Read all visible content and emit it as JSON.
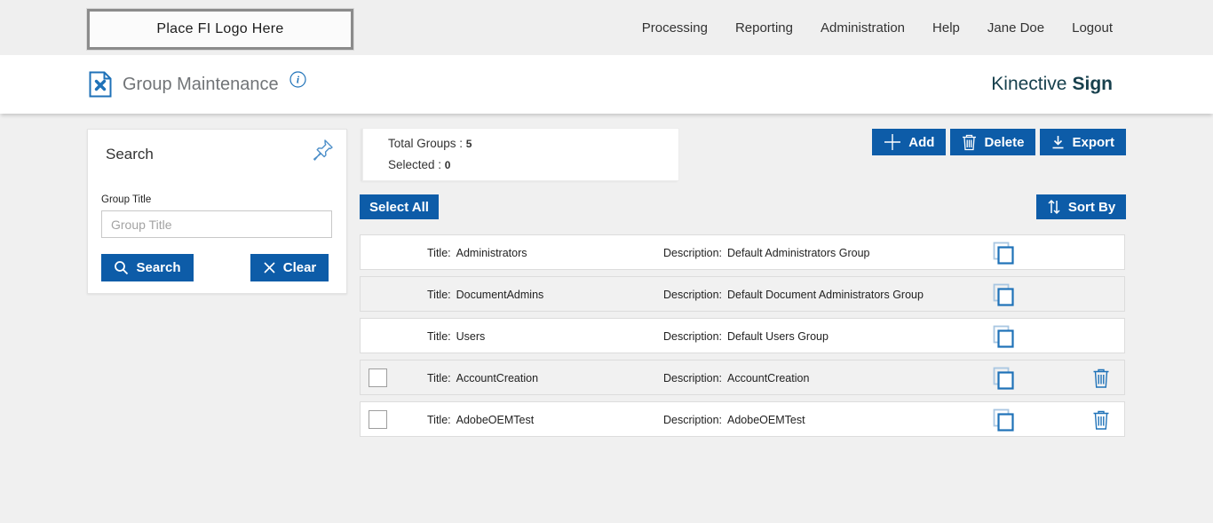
{
  "topbar": {
    "logo_text": "Place FI Logo Here",
    "nav": [
      {
        "label": "Processing"
      },
      {
        "label": "Reporting"
      },
      {
        "label": "Administration"
      },
      {
        "label": "Help"
      },
      {
        "label": "Jane Doe"
      },
      {
        "label": "Logout"
      }
    ]
  },
  "header": {
    "title": "Group Maintenance",
    "brand": {
      "regular": "Kinective",
      "bold": "Sign"
    }
  },
  "search_panel": {
    "title": "Search",
    "field_label": "Group Title",
    "field_placeholder": "Group Title",
    "field_value": "",
    "search_button": "Search",
    "clear_button": "Clear"
  },
  "summary": {
    "total_label": "Total Groups : ",
    "total_value": "5",
    "selected_label": "Selected : ",
    "selected_value": "0"
  },
  "toolbar": {
    "add_label": "Add",
    "delete_label": "Delete",
    "export_label": "Export",
    "select_all_label": "Select All",
    "sort_by_label": "Sort By"
  },
  "groups": {
    "title_label": "Title:",
    "description_label": "Description:",
    "rows": [
      {
        "title": "Administrators",
        "description": "Default Administrators Group",
        "selectable": false,
        "deletable": false,
        "checked": false
      },
      {
        "title": "DocumentAdmins",
        "description": "Default Document Administrators Group",
        "selectable": false,
        "deletable": false,
        "checked": false
      },
      {
        "title": "Users",
        "description": "Default Users Group",
        "selectable": false,
        "deletable": false,
        "checked": false
      },
      {
        "title": "AccountCreation",
        "description": "AccountCreation",
        "selectable": true,
        "deletable": true,
        "checked": false
      },
      {
        "title": "AdobeOEMTest",
        "description": "AdobeOEMTest",
        "selectable": true,
        "deletable": true,
        "checked": false
      }
    ]
  },
  "colors": {
    "button_blue": "#0d5ca8",
    "icon_blue": "#1f72b8",
    "brand_teal": "#17404d",
    "topbar_bg": "#efefef",
    "content_bg": "#f0f0f0"
  }
}
